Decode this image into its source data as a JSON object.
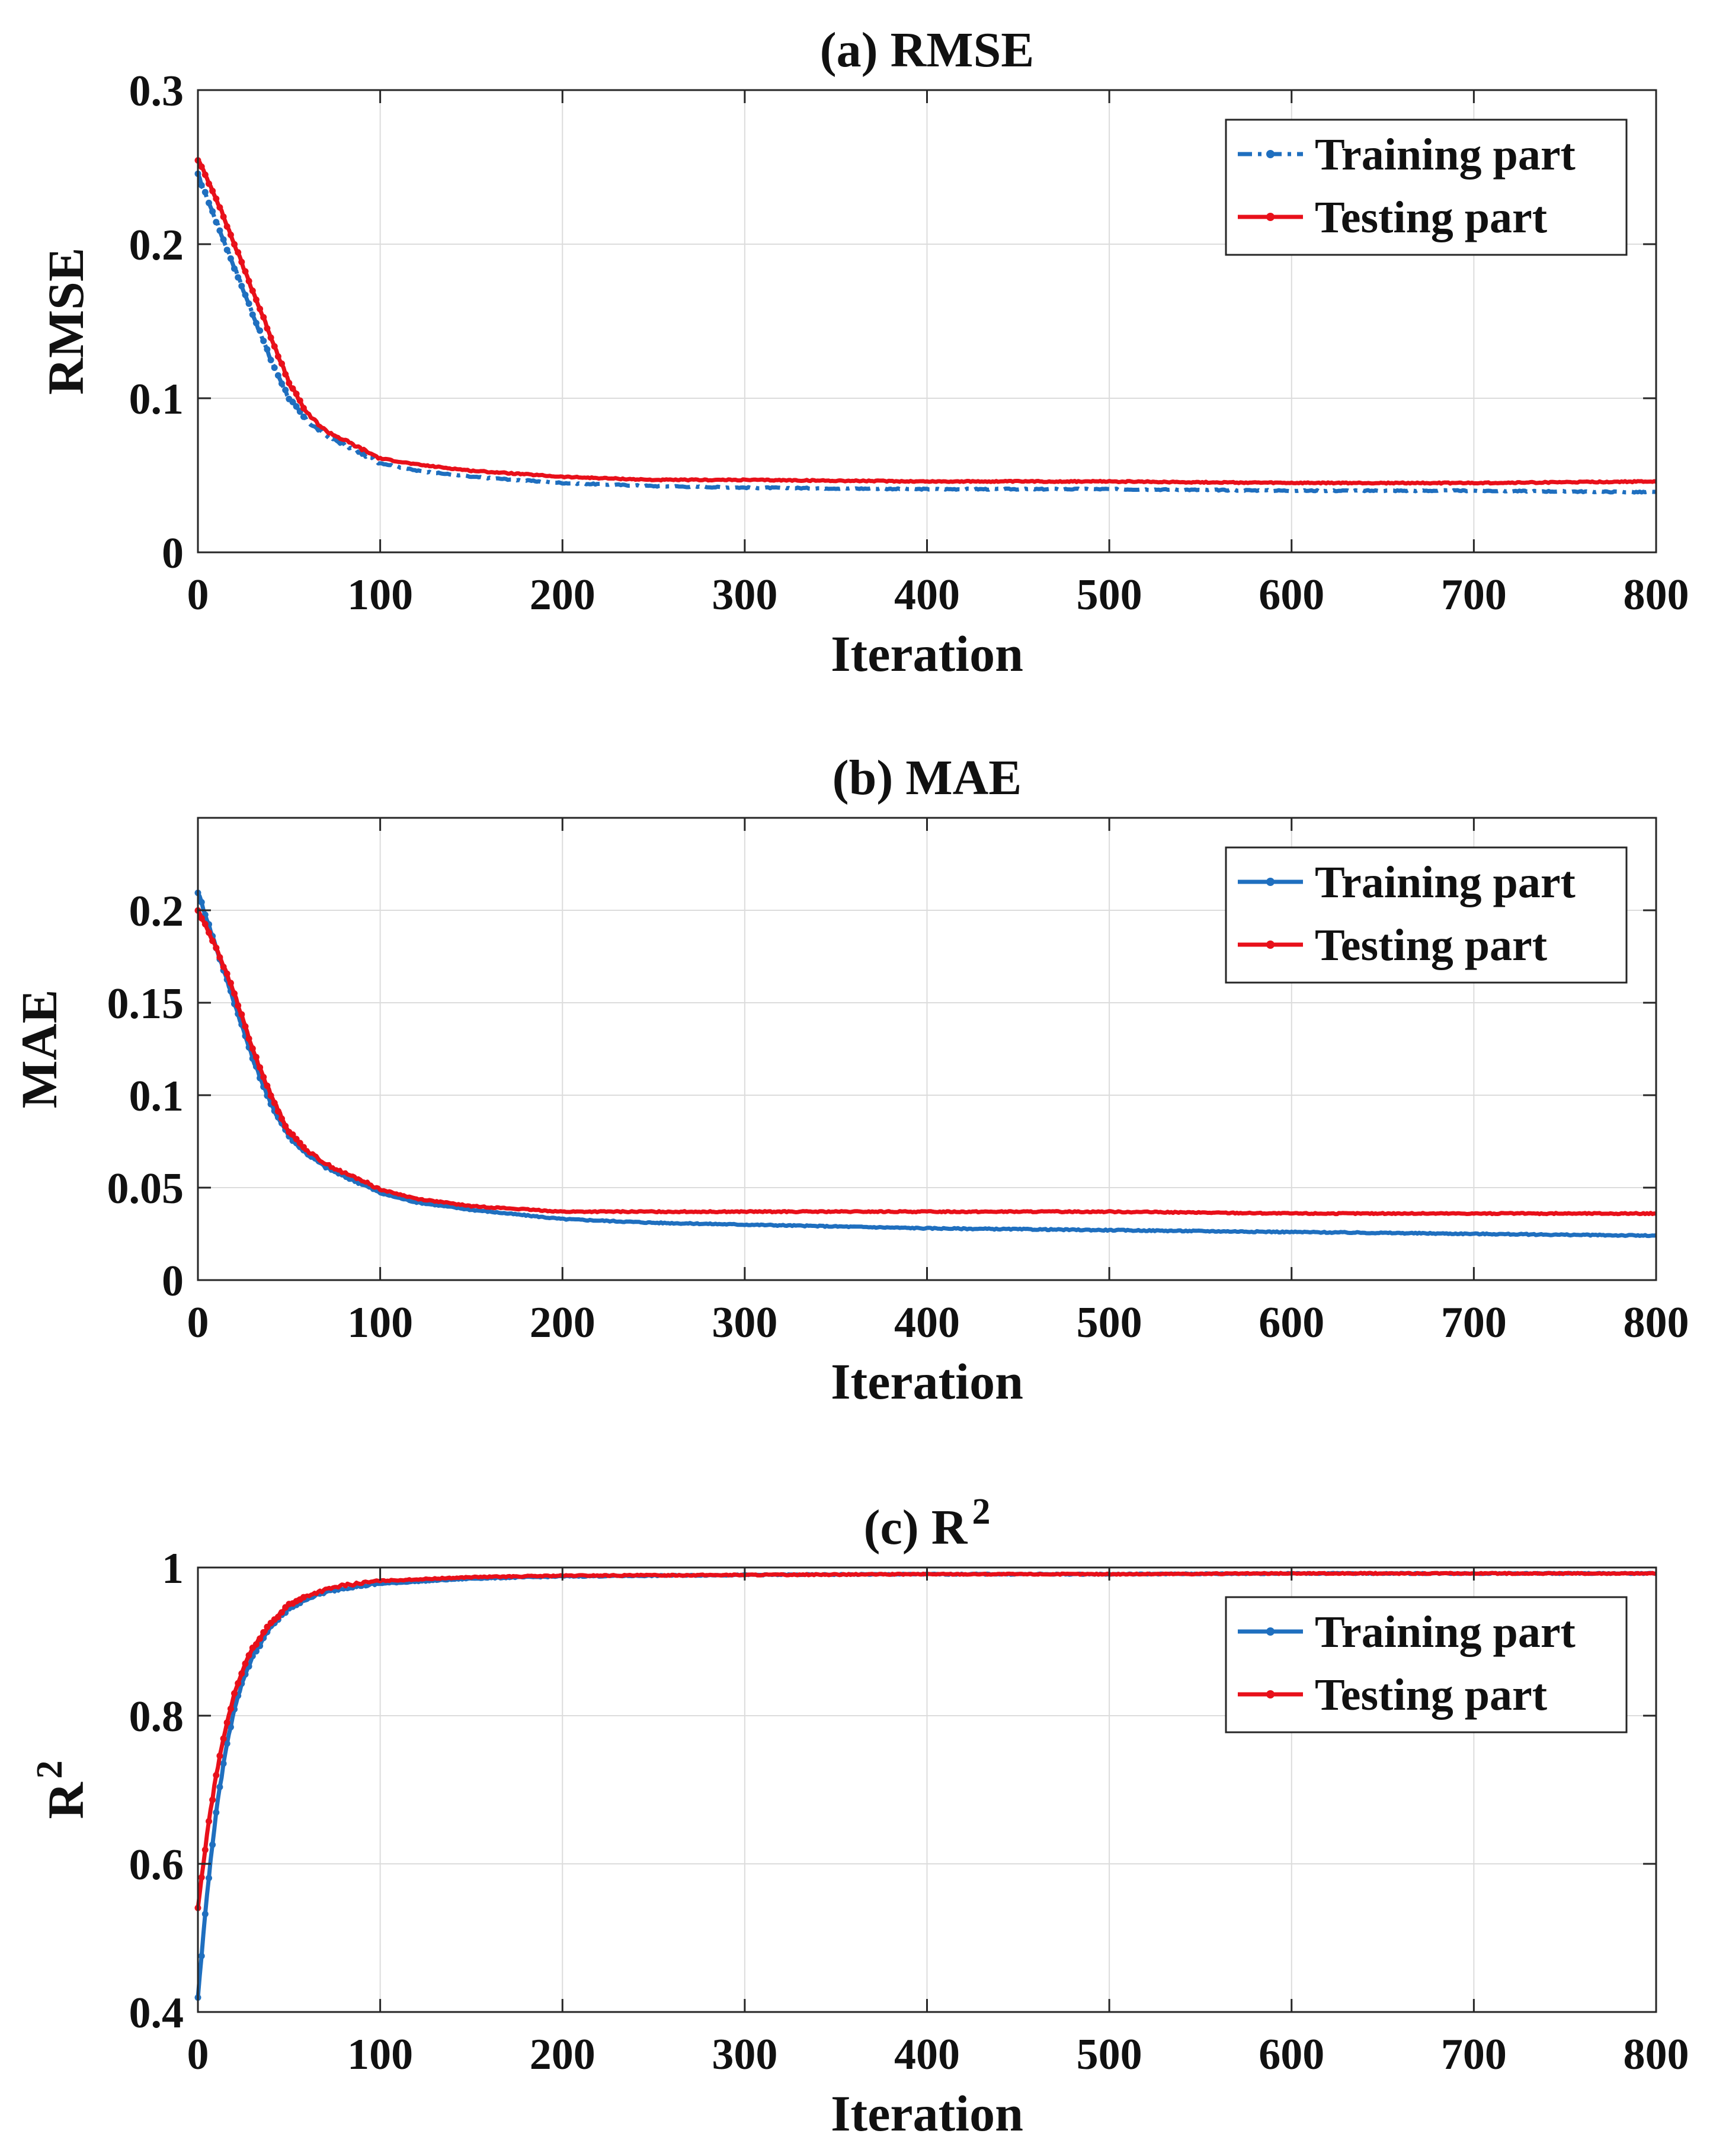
{
  "chart_data": [
    {
      "id": "rmse",
      "type": "line",
      "title": "(a) RMSE",
      "xlabel": "Iteration",
      "ylabel": "RMSE",
      "xlim": [
        0,
        800
      ],
      "ylim": [
        0,
        0.3
      ],
      "x_ticks": [
        0,
        100,
        200,
        300,
        400,
        500,
        600,
        700,
        800
      ],
      "x_tick_labels": [
        "0",
        "100",
        "200",
        "300",
        "400",
        "500",
        "600",
        "700",
        "800"
      ],
      "y_ticks": [
        0,
        0.1,
        0.2,
        0.3
      ],
      "y_tick_labels": [
        "0",
        "0.1",
        "0.2",
        "0.3"
      ],
      "grid": true,
      "legend_position": "top-right",
      "series": [
        {
          "name": "Training part",
          "color": "#1f6fbf",
          "style": "dash-dot",
          "x": [
            0,
            10,
            20,
            30,
            40,
            50,
            60,
            70,
            80,
            90,
            100,
            120,
            150,
            200,
            250,
            300,
            400,
            500,
            600,
            700,
            800
          ],
          "y": [
            0.245,
            0.215,
            0.185,
            0.155,
            0.125,
            0.1,
            0.085,
            0.076,
            0.07,
            0.064,
            0.058,
            0.053,
            0.049,
            0.045,
            0.043,
            0.042,
            0.041,
            0.041,
            0.04,
            0.04,
            0.039
          ]
        },
        {
          "name": "Testing part",
          "color": "#e8101a",
          "style": "solid",
          "x": [
            0,
            10,
            20,
            30,
            40,
            50,
            60,
            70,
            80,
            90,
            100,
            120,
            150,
            200,
            250,
            300,
            400,
            500,
            600,
            700,
            800
          ],
          "y": [
            0.255,
            0.23,
            0.2,
            0.17,
            0.14,
            0.11,
            0.09,
            0.079,
            0.073,
            0.067,
            0.061,
            0.057,
            0.053,
            0.049,
            0.047,
            0.047,
            0.046,
            0.046,
            0.045,
            0.045,
            0.046
          ]
        }
      ]
    },
    {
      "id": "mae",
      "type": "line",
      "title": "(b) MAE",
      "xlabel": "Iteration",
      "ylabel": "MAE",
      "xlim": [
        0,
        800
      ],
      "ylim": [
        0,
        0.25
      ],
      "x_ticks": [
        0,
        100,
        200,
        300,
        400,
        500,
        600,
        700,
        800
      ],
      "x_tick_labels": [
        "0",
        "100",
        "200",
        "300",
        "400",
        "500",
        "600",
        "700",
        "800"
      ],
      "y_ticks": [
        0,
        0.05,
        0.1,
        0.15,
        0.2
      ],
      "y_tick_labels": [
        "0",
        "0.05",
        "0.1",
        "0.15",
        "0.2"
      ],
      "grid": true,
      "legend_position": "top-right",
      "series": [
        {
          "name": "Training part",
          "color": "#1f6fbf",
          "style": "solid",
          "x": [
            0,
            10,
            20,
            30,
            40,
            50,
            60,
            70,
            80,
            90,
            100,
            120,
            150,
            200,
            250,
            300,
            400,
            500,
            600,
            700,
            800
          ],
          "y": [
            0.21,
            0.18,
            0.15,
            0.12,
            0.095,
            0.078,
            0.068,
            0.061,
            0.056,
            0.052,
            0.047,
            0.042,
            0.038,
            0.033,
            0.031,
            0.03,
            0.028,
            0.027,
            0.026,
            0.025,
            0.024
          ]
        },
        {
          "name": "Testing part",
          "color": "#e8101a",
          "style": "solid",
          "x": [
            0,
            10,
            20,
            30,
            40,
            50,
            60,
            70,
            80,
            90,
            100,
            120,
            150,
            200,
            250,
            300,
            400,
            500,
            600,
            700,
            800
          ],
          "y": [
            0.2,
            0.18,
            0.155,
            0.125,
            0.1,
            0.08,
            0.07,
            0.063,
            0.058,
            0.054,
            0.049,
            0.044,
            0.04,
            0.037,
            0.037,
            0.037,
            0.037,
            0.037,
            0.036,
            0.036,
            0.036
          ]
        }
      ]
    },
    {
      "id": "r2",
      "type": "line",
      "title": "(c) R",
      "title_superscript": "2",
      "xlabel": "Iteration",
      "ylabel": "R",
      "ylabel_superscript": "2",
      "xlim": [
        0,
        800
      ],
      "ylim": [
        0.4,
        1.0
      ],
      "x_ticks": [
        0,
        100,
        200,
        300,
        400,
        500,
        600,
        700,
        800
      ],
      "x_tick_labels": [
        "0",
        "100",
        "200",
        "300",
        "400",
        "500",
        "600",
        "700",
        "800"
      ],
      "y_ticks": [
        0.4,
        0.6,
        0.8,
        1.0
      ],
      "y_tick_labels": [
        "0.4",
        "0.6",
        "0.8",
        "1"
      ],
      "grid": true,
      "legend_position": "top-right",
      "series": [
        {
          "name": "Training part",
          "color": "#1f6fbf",
          "style": "solid",
          "x": [
            0,
            5,
            10,
            15,
            20,
            25,
            30,
            40,
            50,
            60,
            70,
            80,
            100,
            150,
            200,
            300,
            400,
            500,
            600,
            700,
            800
          ],
          "y": [
            0.42,
            0.56,
            0.67,
            0.75,
            0.81,
            0.85,
            0.88,
            0.92,
            0.945,
            0.958,
            0.966,
            0.972,
            0.978,
            0.985,
            0.988,
            0.99,
            0.991,
            0.991,
            0.992,
            0.992,
            0.992
          ]
        },
        {
          "name": "Testing part",
          "color": "#e8101a",
          "style": "solid",
          "x": [
            0,
            5,
            10,
            15,
            20,
            25,
            30,
            40,
            50,
            60,
            70,
            80,
            100,
            150,
            200,
            300,
            400,
            500,
            600,
            700,
            800
          ],
          "y": [
            0.54,
            0.64,
            0.72,
            0.78,
            0.83,
            0.865,
            0.89,
            0.925,
            0.95,
            0.962,
            0.97,
            0.976,
            0.982,
            0.987,
            0.989,
            0.99,
            0.991,
            0.991,
            0.992,
            0.992,
            0.992
          ]
        }
      ]
    }
  ]
}
